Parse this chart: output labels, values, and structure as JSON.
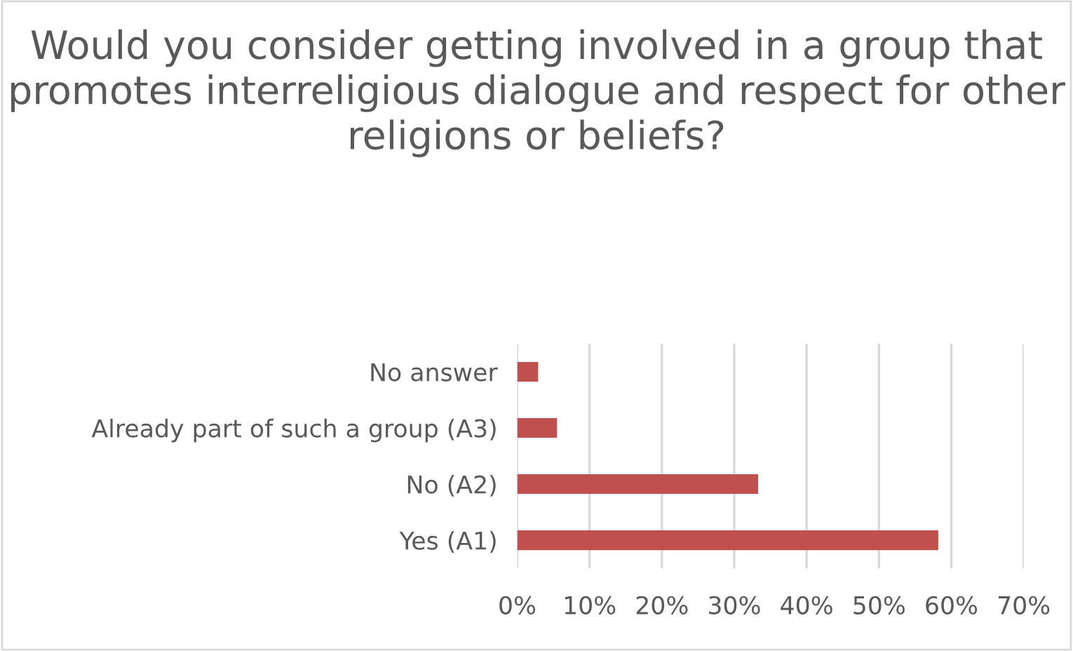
{
  "chart_data": {
    "type": "bar",
    "orientation": "horizontal",
    "title": "Would you consider getting involved in a group that promotes interreligious dialogue and respect for other religions or beliefs?",
    "categories": [
      "No answer",
      "Already part of such a group (A3)",
      "No (A2)",
      "Yes (A1)"
    ],
    "values": [
      2.9,
      5.5,
      33.3,
      58.2
    ],
    "color": "#c0504d",
    "xlim": [
      0,
      70
    ],
    "xticks": [
      {
        "value": 0,
        "label": "0%"
      },
      {
        "value": 10,
        "label": "10%"
      },
      {
        "value": 20,
        "label": "20%"
      },
      {
        "value": 30,
        "label": "30%"
      },
      {
        "value": 40,
        "label": "40%"
      },
      {
        "value": 50,
        "label": "50%"
      },
      {
        "value": 60,
        "label": "60%"
      },
      {
        "value": 70,
        "label": "70%"
      }
    ],
    "grid": "x",
    "legend": false
  }
}
